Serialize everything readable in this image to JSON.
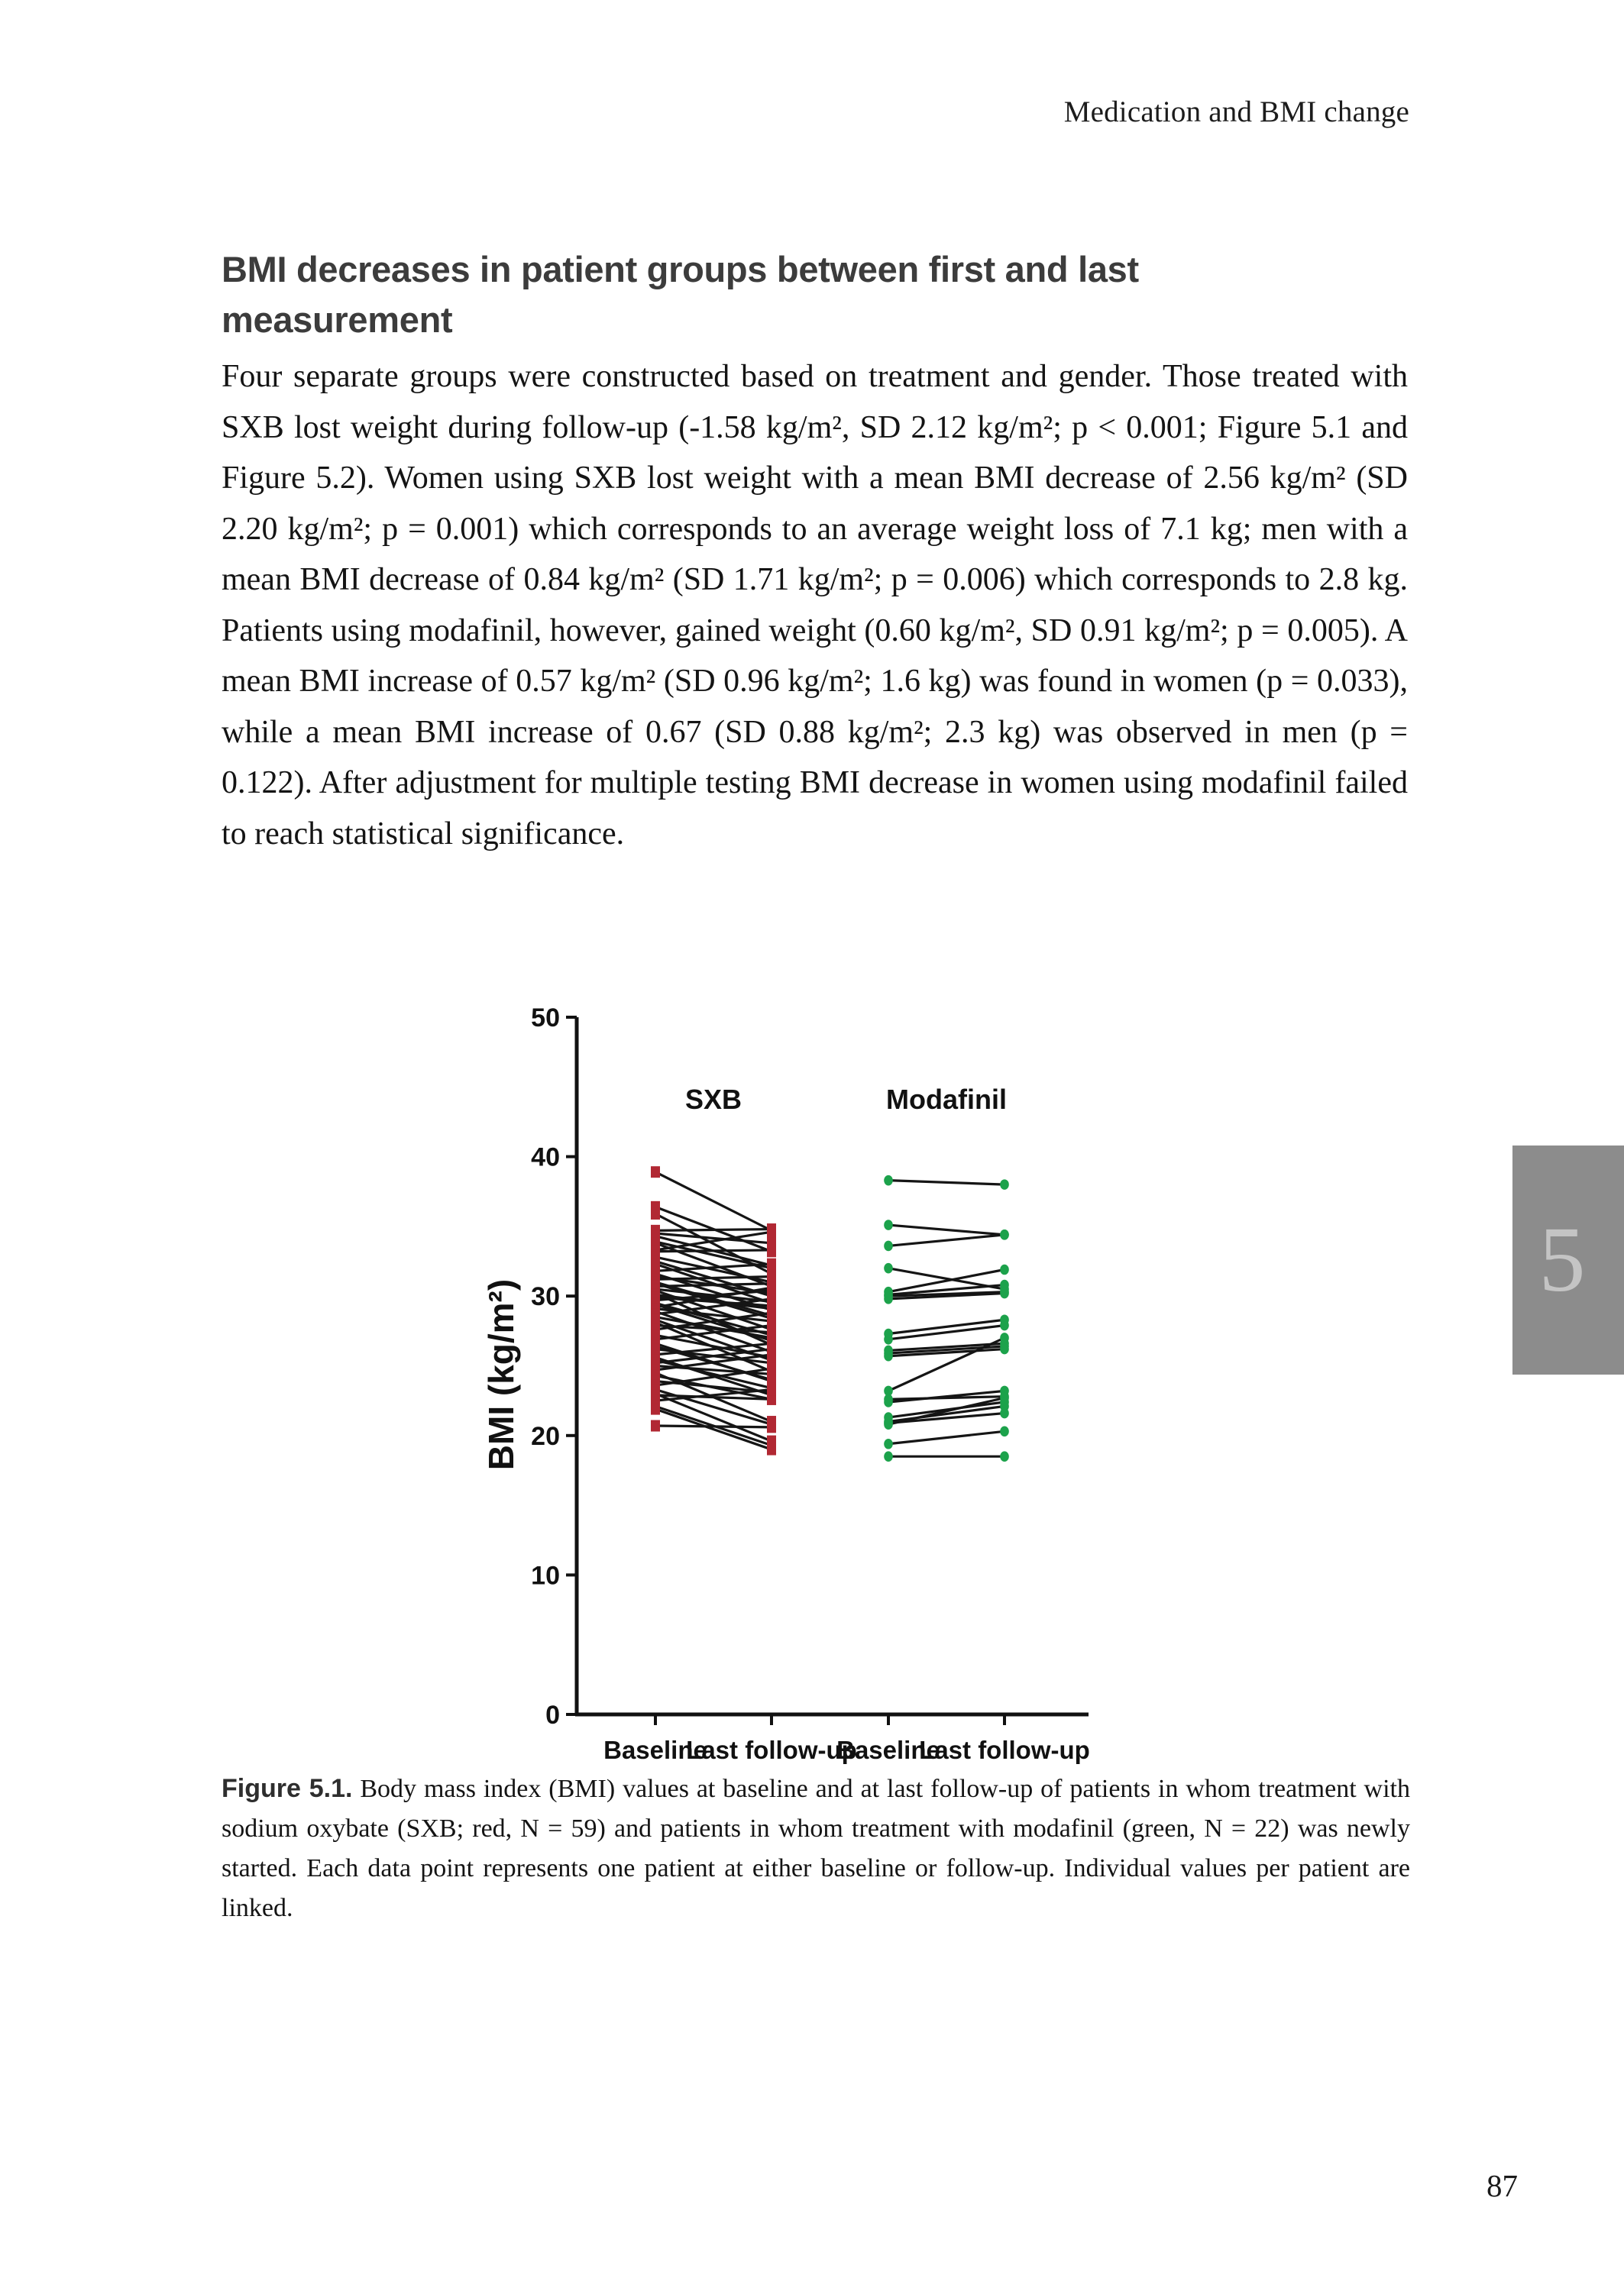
{
  "page": {
    "running_header": "Medication and BMI change",
    "page_number": "87",
    "chapter_tab_number": "5",
    "chapter_tab_color": "#8c8c8c",
    "chapter_tab_number_color": "#c4c4c4"
  },
  "section": {
    "heading_line1": "BMI decreases in patient groups between first and last",
    "heading_line2": "measurement",
    "paragraph": "Four separate groups were constructed based on treatment and gender. Those treated with SXB lost weight during follow-up (-1.58 kg/m², SD 2.12 kg/m²; p < 0.001; Figure 5.1 and Figure 5.2). Women using SXB lost weight with a mean BMI decrease of 2.56 kg/m² (SD 2.20 kg/m²; p = 0.001) which corresponds to an average weight loss of 7.1 kg; men with a mean BMI decrease of 0.84 kg/m² (SD 1.71 kg/m²; p = 0.006) which corresponds to 2.8 kg. Patients using modafinil, however, gained weight (0.60 kg/m², SD 0.91 kg/m²; p = 0.005). A mean BMI increase of 0.57 kg/m² (SD 0.96 kg/m²; 1.6 kg) was found in women (p = 0.033), while a mean BMI increase of 0.67 (SD 0.88 kg/m²; 2.3 kg) was observed in men (p = 0.122). After adjustment for multiple testing BMI decrease in women using modafinil failed to reach statistical significance."
  },
  "figure": {
    "caption_label": "Figure 5.1.",
    "caption_text": " Body mass index (BMI) values at baseline and at last follow-up of patients in whom treatment with sodium oxybate (SXB; red, N = 59) and patients in whom treatment with modafinil (green, N = 22) was newly started. Each data point represents one patient at either baseline or follow-up. Individual values per patient are linked."
  },
  "chart_data": {
    "type": "scatter",
    "subtype": "paired before-after plot",
    "title": "",
    "xlabel": "",
    "ylabel": "BMI (kg/m²)",
    "ylim": [
      0,
      50
    ],
    "yticks": [
      0,
      10,
      20,
      30,
      40,
      50
    ],
    "grid": false,
    "legend_position": "group labels above clusters",
    "categories": [
      "Baseline",
      "Last follow-up",
      "Baseline",
      "Last follow-up"
    ],
    "line_color": "#151515",
    "axis_color": "#111111",
    "groups": [
      {
        "name": "SXB",
        "n": 59,
        "color": "#b12833",
        "marker": "square",
        "category_indices": [
          0,
          1
        ],
        "pairs": [
          [
            38.9,
            34.7
          ],
          [
            36.4,
            33.2
          ],
          [
            35.9,
            31.6
          ],
          [
            34.7,
            34.8
          ],
          [
            34.5,
            33.8
          ],
          [
            34.3,
            32.2
          ],
          [
            33.9,
            32.0
          ],
          [
            33.8,
            30.7
          ],
          [
            33.3,
            34.6
          ],
          [
            33.2,
            33.3
          ],
          [
            32.8,
            31.0
          ],
          [
            32.5,
            30.0
          ],
          [
            32.3,
            29.5
          ],
          [
            31.8,
            32.3
          ],
          [
            31.6,
            29.0
          ],
          [
            31.4,
            30.2
          ],
          [
            31.2,
            31.4
          ],
          [
            31.0,
            28.6
          ],
          [
            30.9,
            28.4
          ],
          [
            30.7,
            30.9
          ],
          [
            30.5,
            29.6
          ],
          [
            30.4,
            27.6
          ],
          [
            30.2,
            26.5
          ],
          [
            30.1,
            29.1
          ],
          [
            29.9,
            29.3
          ],
          [
            29.7,
            30.4
          ],
          [
            29.5,
            27.2
          ],
          [
            29.4,
            26.8
          ],
          [
            29.2,
            30.6
          ],
          [
            29.1,
            28.2
          ],
          [
            28.9,
            26.0
          ],
          [
            28.7,
            29.8
          ],
          [
            28.5,
            27.0
          ],
          [
            28.3,
            25.4
          ],
          [
            28.1,
            24.6
          ],
          [
            27.9,
            27.4
          ],
          [
            27.6,
            28.8
          ],
          [
            27.2,
            25.6
          ],
          [
            26.9,
            27.9
          ],
          [
            26.6,
            23.9
          ],
          [
            26.4,
            24.0
          ],
          [
            26.2,
            25.2
          ],
          [
            25.8,
            26.6
          ],
          [
            25.6,
            22.9
          ],
          [
            25.4,
            23.4
          ],
          [
            25.2,
            26.2
          ],
          [
            25.0,
            24.4
          ],
          [
            24.7,
            25.8
          ],
          [
            24.5,
            21.0
          ],
          [
            24.3,
            22.6
          ],
          [
            23.9,
            23.1
          ],
          [
            23.6,
            24.8
          ],
          [
            23.3,
            20.8
          ],
          [
            23.0,
            19.6
          ],
          [
            22.9,
            22.6
          ],
          [
            22.5,
            23.3
          ],
          [
            22.1,
            19.3
          ],
          [
            21.9,
            19.0
          ],
          [
            20.7,
            20.6
          ]
        ]
      },
      {
        "name": "Modafinil",
        "n": 22,
        "color": "#1ca24b",
        "marker": "circle",
        "category_indices": [
          2,
          3
        ],
        "pairs": [
          [
            38.3,
            38.0
          ],
          [
            35.1,
            34.4
          ],
          [
            33.6,
            34.4
          ],
          [
            32.0,
            30.5
          ],
          [
            30.3,
            31.9
          ],
          [
            30.1,
            30.8
          ],
          [
            30.0,
            30.3
          ],
          [
            29.8,
            30.2
          ],
          [
            27.3,
            28.3
          ],
          [
            26.9,
            27.9
          ],
          [
            26.1,
            26.6
          ],
          [
            25.9,
            26.4
          ],
          [
            25.7,
            26.2
          ],
          [
            23.2,
            27.0
          ],
          [
            22.6,
            22.8
          ],
          [
            22.4,
            23.2
          ],
          [
            21.3,
            22.4
          ],
          [
            21.0,
            22.1
          ],
          [
            20.9,
            21.6
          ],
          [
            20.8,
            22.7
          ],
          [
            19.4,
            20.3
          ],
          [
            18.5,
            18.5
          ]
        ]
      }
    ]
  }
}
